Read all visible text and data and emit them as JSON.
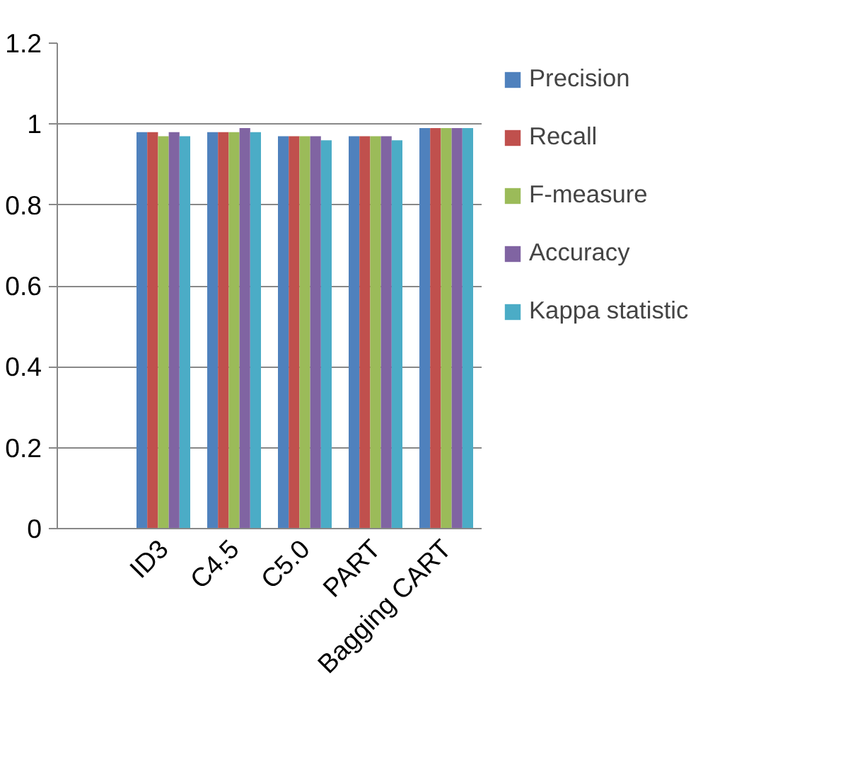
{
  "chart_data": {
    "type": "bar",
    "categories": [
      null,
      "ID3",
      "C4.5",
      "C5.0",
      "PART",
      "Bagging CART"
    ],
    "series": [
      {
        "name": "Precision",
        "color": "#4f81bd",
        "values": [
          null,
          0.98,
          0.98,
          0.97,
          0.97,
          0.99
        ]
      },
      {
        "name": "Recall",
        "color": "#c0504d",
        "values": [
          null,
          0.98,
          0.98,
          0.97,
          0.97,
          0.99
        ]
      },
      {
        "name": "F-measure",
        "color": "#9bbb59",
        "values": [
          null,
          0.97,
          0.98,
          0.97,
          0.97,
          0.99
        ]
      },
      {
        "name": "Accuracy",
        "color": "#8064a2",
        "values": [
          null,
          0.98,
          0.99,
          0.97,
          0.97,
          0.99
        ]
      },
      {
        "name": "Kappa statistic",
        "color": "#4bacc6",
        "values": [
          null,
          0.97,
          0.98,
          0.96,
          0.96,
          0.99
        ]
      }
    ],
    "ylim": [
      0,
      1.2
    ],
    "yticks": [
      0,
      0.2,
      0.4,
      0.6,
      0.8,
      1,
      1.2
    ],
    "grid": "y",
    "legend": "right"
  }
}
